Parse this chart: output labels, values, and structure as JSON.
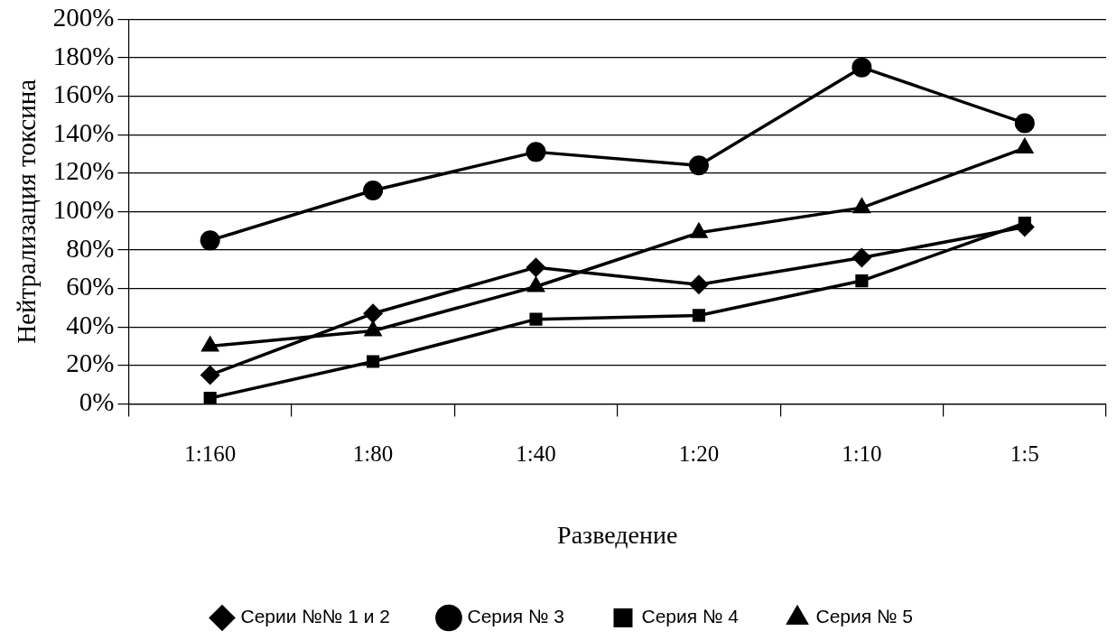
{
  "chart_data": {
    "type": "line",
    "xlabel": "Разведение",
    "ylabel": "Нейтрализация токсина",
    "categories": [
      "1:160",
      "1:80",
      "1:40",
      "1:20",
      "1:10",
      "1:5"
    ],
    "ylim": [
      0,
      200
    ],
    "yticks": [
      {
        "value": 0,
        "label": "0%"
      },
      {
        "value": 20,
        "label": "20%"
      },
      {
        "value": 40,
        "label": "40%"
      },
      {
        "value": 60,
        "label": "60%"
      },
      {
        "value": 80,
        "label": "80%"
      },
      {
        "value": 100,
        "label": "100%"
      },
      {
        "value": 120,
        "label": "120%"
      },
      {
        "value": 140,
        "label": "140%"
      },
      {
        "value": 160,
        "label": "160%"
      },
      {
        "value": 180,
        "label": "180%"
      },
      {
        "value": 200,
        "label": "200%"
      }
    ],
    "grid": "y",
    "legend": "bottom",
    "line_style": "solid",
    "series": [
      {
        "name": "Серии №№ 1 и 2",
        "color": "#000000",
        "marker": "diamond",
        "values": [
          15,
          47,
          71,
          62,
          76,
          92
        ]
      },
      {
        "name": "Серия № 3",
        "color": "#000000",
        "marker": "circle",
        "values": [
          85,
          111,
          131,
          124,
          175,
          146
        ]
      },
      {
        "name": "Серия № 4",
        "color": "#000000",
        "marker": "square",
        "values": [
          3,
          22,
          44,
          46,
          64,
          94
        ]
      },
      {
        "name": "Серия № 5",
        "color": "#000000",
        "marker": "triangle",
        "values": [
          30,
          38,
          61,
          89,
          102,
          133
        ]
      }
    ]
  }
}
